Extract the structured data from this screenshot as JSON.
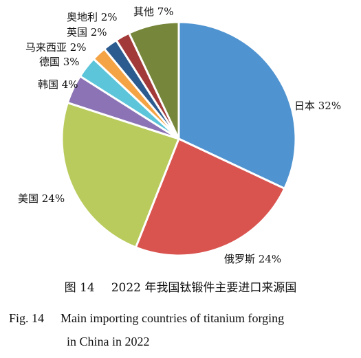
{
  "chart_data": {
    "type": "pie",
    "title": "",
    "slices": [
      {
        "name": "日本",
        "label": "日本 32%",
        "value": 32,
        "color": "#4F93D0"
      },
      {
        "name": "俄罗斯",
        "label": "俄罗斯 24%",
        "value": 24,
        "color": "#D9534F"
      },
      {
        "name": "美国",
        "label": "美国 24%",
        "value": 24,
        "color": "#B9CB5C"
      },
      {
        "name": "韩国",
        "label": "韩国 4%",
        "value": 4,
        "color": "#8B73B5"
      },
      {
        "name": "德国",
        "label": "德国 3%",
        "value": 3,
        "color": "#5CC5DA"
      },
      {
        "name": "马来西亚",
        "label": "马来西亚 2%",
        "value": 2,
        "color": "#F5A445"
      },
      {
        "name": "英国",
        "label": "英国 2%",
        "value": 2,
        "color": "#2C5C8F"
      },
      {
        "name": "奥地利",
        "label": "奥地利 2%",
        "value": 2,
        "color": "#A33A3A"
      },
      {
        "name": "其他",
        "label": "其他 7%",
        "value": 7,
        "color": "#76863A"
      }
    ]
  },
  "caption": {
    "cn_number": "图 14",
    "cn_text": "2022 年我国钛锻件主要进口来源国",
    "en_number": "Fig. 14",
    "en_line1": "Main importing countries of titanium forging",
    "en_line2": "in China in 2022"
  }
}
